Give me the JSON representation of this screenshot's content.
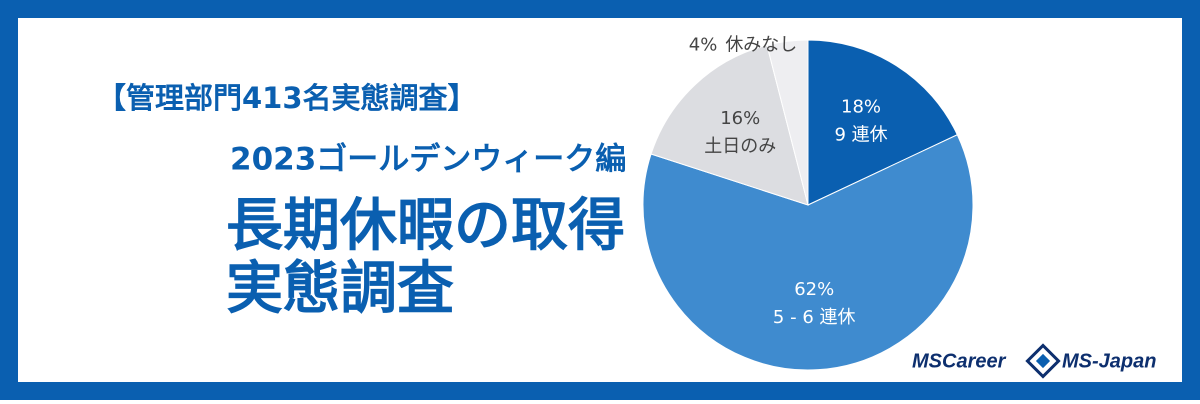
{
  "chart_data": {
    "type": "pie",
    "title_lines": [
      "【管理部門413名実態調査】",
      "2023ゴールデンウィーク編",
      "長期休暇の取得",
      "実態調査"
    ],
    "categories": [
      "9 連休",
      "5 - 6 連休",
      "土日のみ",
      "休みなし"
    ],
    "values": [
      18,
      62,
      16,
      4
    ],
    "value_labels": [
      "18%",
      "62%",
      "16%",
      "4%"
    ],
    "colors": [
      "#0a5fb0",
      "#3f8bcf",
      "#dcdde1",
      "#eeeef1"
    ],
    "label_colors": [
      "#ffffff",
      "#ffffff",
      "#444444",
      "#444444"
    ]
  },
  "branding": [
    "MSCareer",
    "MS-Japan"
  ]
}
